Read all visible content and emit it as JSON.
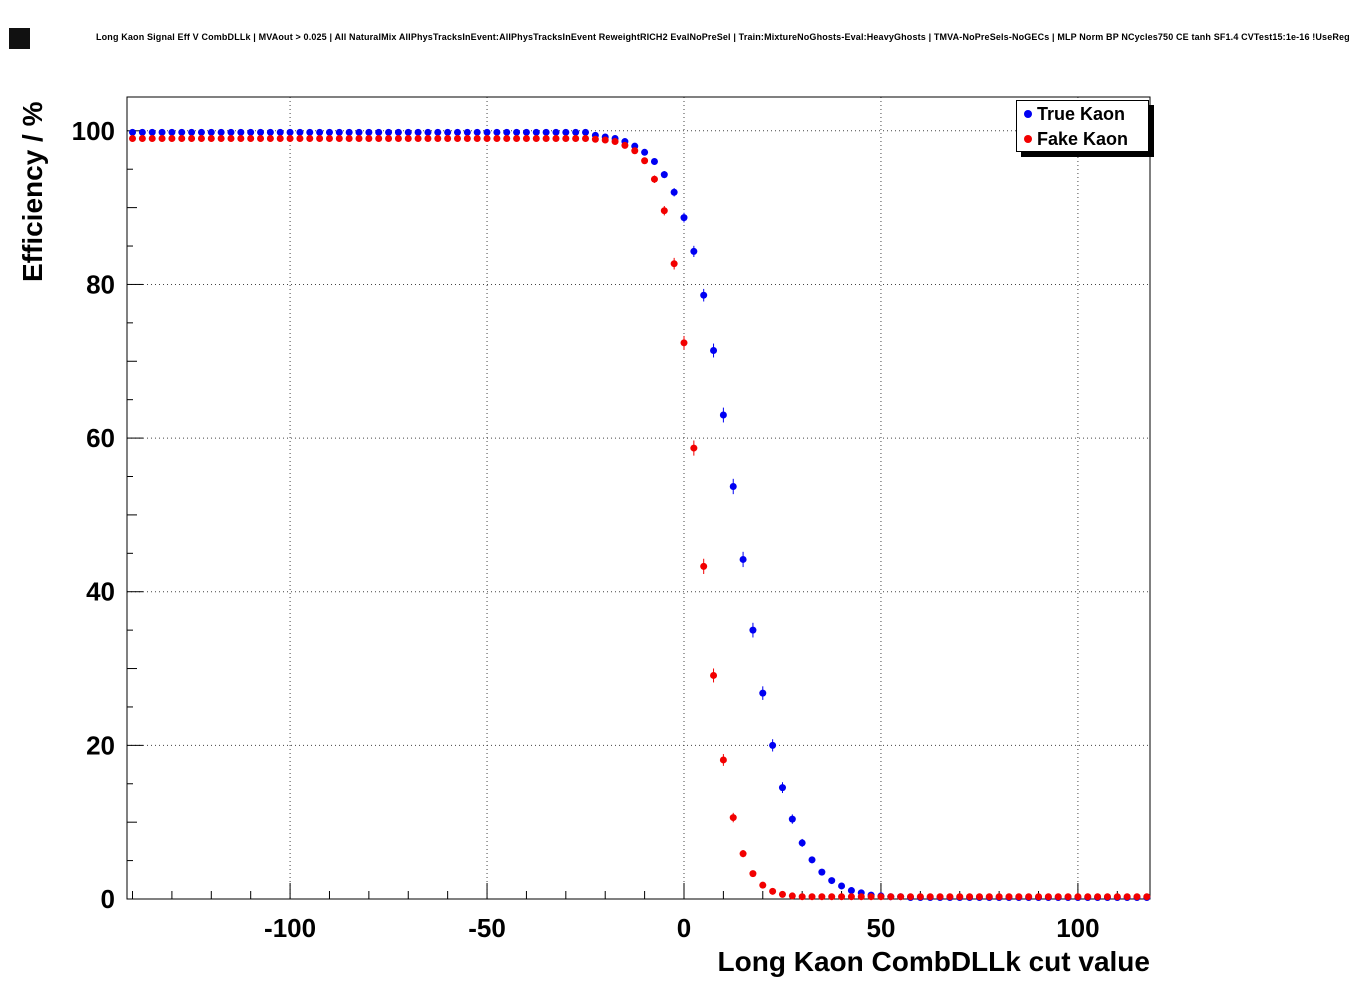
{
  "chart_data": {
    "type": "scatter",
    "title": "Long Kaon Signal Eff V CombDLLk | MVAout > 0.025 | All NaturalMix AllPhysTracksInEvent:AllPhysTracksInEvent ReweightRICH2 EvalNoPreSel | Train:MixtureNoGhosts-Eval:HeavyGhosts | TMVA-NoPreSels-NoGECs | MLP Norm BP NCycles750 CE tanh SF1.4 CVTest15:1e-16 !UseReg",
    "xlabel": "Long Kaon CombDLLk cut value",
    "ylabel": "Efficiency / %",
    "xlim": [
      -141.4,
      118.3
    ],
    "ylim": [
      0,
      104.4
    ],
    "x_ticks": [
      -100,
      -50,
      0,
      50,
      100
    ],
    "y_ticks": [
      0,
      20,
      40,
      60,
      80,
      100
    ],
    "grid": "dotted",
    "marker": "circle",
    "legend": {
      "position": "top-right",
      "entries": [
        {
          "label": "True Kaon",
          "color": "#0000f2"
        },
        {
          "label": "Fake Kaon",
          "color": "#f20000"
        }
      ]
    },
    "x": [
      -140,
      -137.5,
      -135,
      -132.5,
      -130,
      -127.5,
      -125,
      -122.5,
      -120,
      -117.5,
      -115,
      -112.5,
      -110,
      -107.5,
      -105,
      -102.5,
      -100,
      -97.5,
      -95,
      -92.5,
      -90,
      -87.5,
      -85,
      -82.5,
      -80,
      -77.5,
      -75,
      -72.5,
      -70,
      -67.5,
      -65,
      -62.5,
      -60,
      -57.5,
      -55,
      -52.5,
      -50,
      -47.5,
      -45,
      -42.5,
      -40,
      -37.5,
      -35,
      -32.5,
      -30,
      -27.5,
      -25,
      -22.5,
      -20,
      -17.5,
      -15,
      -12.5,
      -10,
      -7.5,
      -5,
      -2.5,
      0,
      2.5,
      5,
      7.5,
      10,
      12.5,
      15,
      17.5,
      20,
      22.5,
      25,
      27.5,
      30,
      32.5,
      35,
      37.5,
      40,
      42.5,
      45,
      47.5,
      50,
      52.5,
      55,
      57.5,
      60,
      62.5,
      65,
      67.5,
      70,
      72.5,
      75,
      77.5,
      80,
      82.5,
      85,
      87.5,
      90,
      92.5,
      95,
      97.5,
      100,
      102.5,
      105,
      107.5,
      110,
      112.5,
      115,
      117.5
    ],
    "series": [
      {
        "name": "True Kaon",
        "color": "#0000f2",
        "values": [
          99.8,
          99.8,
          99.8,
          99.8,
          99.8,
          99.8,
          99.8,
          99.8,
          99.8,
          99.8,
          99.8,
          99.8,
          99.8,
          99.8,
          99.8,
          99.8,
          99.8,
          99.8,
          99.8,
          99.8,
          99.8,
          99.8,
          99.8,
          99.8,
          99.8,
          99.8,
          99.8,
          99.8,
          99.8,
          99.8,
          99.8,
          99.8,
          99.8,
          99.8,
          99.8,
          99.8,
          99.8,
          99.8,
          99.8,
          99.8,
          99.8,
          99.8,
          99.8,
          99.8,
          99.8,
          99.8,
          99.8,
          99.4,
          99.2,
          99.0,
          98.6,
          98.0,
          97.2,
          96.0,
          94.3,
          92.0,
          88.7,
          84.3,
          78.6,
          71.4,
          63.0,
          53.7,
          44.2,
          35.0,
          26.8,
          20.0,
          14.5,
          10.4,
          7.3,
          5.1,
          3.5,
          2.4,
          1.7,
          1.1,
          0.8,
          0.5,
          0.4,
          0.3,
          0.3,
          0.2,
          0.2,
          0.2,
          0.2,
          0.2,
          0.2,
          0.2,
          0.2,
          0.2,
          0.2,
          0.2,
          0.2,
          0.2,
          0.2,
          0.2,
          0.2,
          0.2,
          0.2,
          0.2,
          0.2,
          0.2,
          0.2,
          0.2,
          0.2,
          0.2
        ]
      },
      {
        "name": "Fake Kaon",
        "color": "#f20000",
        "values": [
          99.0,
          99.0,
          99.0,
          99.0,
          99.0,
          99.0,
          99.0,
          99.0,
          99.0,
          99.0,
          99.0,
          99.0,
          99.0,
          99.0,
          99.0,
          99.0,
          99.0,
          99.0,
          99.0,
          99.0,
          99.0,
          99.0,
          99.0,
          99.0,
          99.0,
          99.0,
          99.0,
          99.0,
          99.0,
          99.0,
          99.0,
          99.0,
          99.0,
          99.0,
          99.0,
          99.0,
          99.0,
          99.0,
          99.0,
          99.0,
          99.0,
          99.0,
          99.0,
          99.0,
          99.0,
          99.0,
          99.0,
          98.9,
          98.8,
          98.6,
          98.1,
          97.4,
          96.1,
          93.7,
          89.6,
          82.7,
          72.4,
          58.7,
          43.3,
          29.1,
          18.1,
          10.6,
          5.9,
          3.3,
          1.8,
          1.0,
          0.6,
          0.4,
          0.3,
          0.3,
          0.3,
          0.3,
          0.3,
          0.3,
          0.3,
          0.3,
          0.3,
          0.3,
          0.3,
          0.3,
          0.3,
          0.3,
          0.3,
          0.3,
          0.3,
          0.3,
          0.3,
          0.3,
          0.3,
          0.3,
          0.3,
          0.3,
          0.3,
          0.3,
          0.3,
          0.3,
          0.3,
          0.3,
          0.3,
          0.3,
          0.3,
          0.3,
          0.3,
          0.3
        ]
      }
    ],
    "colors": {
      "grid": "#444444",
      "frame": "#000000",
      "background": "#ffffff"
    }
  }
}
